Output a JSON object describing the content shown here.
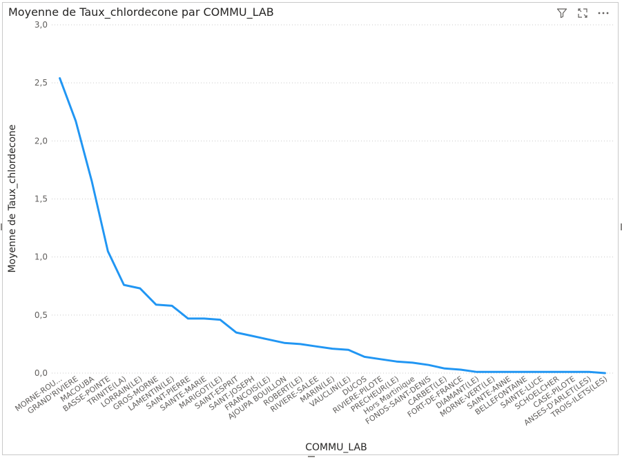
{
  "visual": {
    "title": "Moyenne de Taux_chlordecone par COMMU_LAB",
    "icons": [
      "filter-icon",
      "focus-mode-icon",
      "more-options-icon"
    ]
  },
  "colors": {
    "line": "#2196f3",
    "grid": "#c8c8c8",
    "text": "#605e5c",
    "axis_title": "#252423"
  },
  "chart_data": {
    "type": "line",
    "title": "Moyenne de Taux_chlordecone par COMMU_LAB",
    "xlabel": "COMMU_LAB",
    "ylabel": "Moyenne de Taux_chlordecone",
    "ylim": [
      0,
      3
    ],
    "yticks": [
      "0,0",
      "0,5",
      "1,0",
      "1,5",
      "2,0",
      "2,5",
      "3,0"
    ],
    "grid": true,
    "legend": "none",
    "categories": [
      "MORNE-ROU...",
      "GRAND'RIVIERE",
      "MACOUBA",
      "BASSE-POINTE",
      "TRINITE(LA)",
      "LORRAIN(LE)",
      "GROS-MORNE",
      "LAMENTIN(LE)",
      "SAINT-PIERRE",
      "SAINTE-MARIE",
      "MARIGOT(LE)",
      "SAINT-ESPRIT",
      "SAINT-JOSEPH",
      "FRANCOIS(LE)",
      "AJOUPA BOUILLON",
      "ROBERT(LE)",
      "RIVIERE-SALEE",
      "MARIN(LE)",
      "VAUCLIN(LE)",
      "DUCOS",
      "RIVIERE-PILOTE",
      "PRECHEUR(LE)",
      "Hors Martinique",
      "FONDS-SAINT-DENIS",
      "CARBET(LE)",
      "FORT-DE-FRANCE",
      "DIAMANT(LE)",
      "MORNE-VERT(LE)",
      "SAINTE-ANNE",
      "BELLEFONTAINE",
      "SAINTE-LUCE",
      "SCHOELCHER",
      "CASE-PILOTE",
      "ANSES-D'ARLET(LES)",
      "TROIS-ILETS(LES)"
    ],
    "values": [
      2.54,
      2.17,
      1.65,
      1.05,
      0.76,
      0.73,
      0.59,
      0.58,
      0.47,
      0.47,
      0.46,
      0.35,
      0.32,
      0.29,
      0.26,
      0.25,
      0.23,
      0.21,
      0.2,
      0.14,
      0.12,
      0.1,
      0.09,
      0.07,
      0.04,
      0.03,
      0.01,
      0.01,
      0.01,
      0.01,
      0.01,
      0.01,
      0.01,
      0.01,
      0.0
    ]
  }
}
